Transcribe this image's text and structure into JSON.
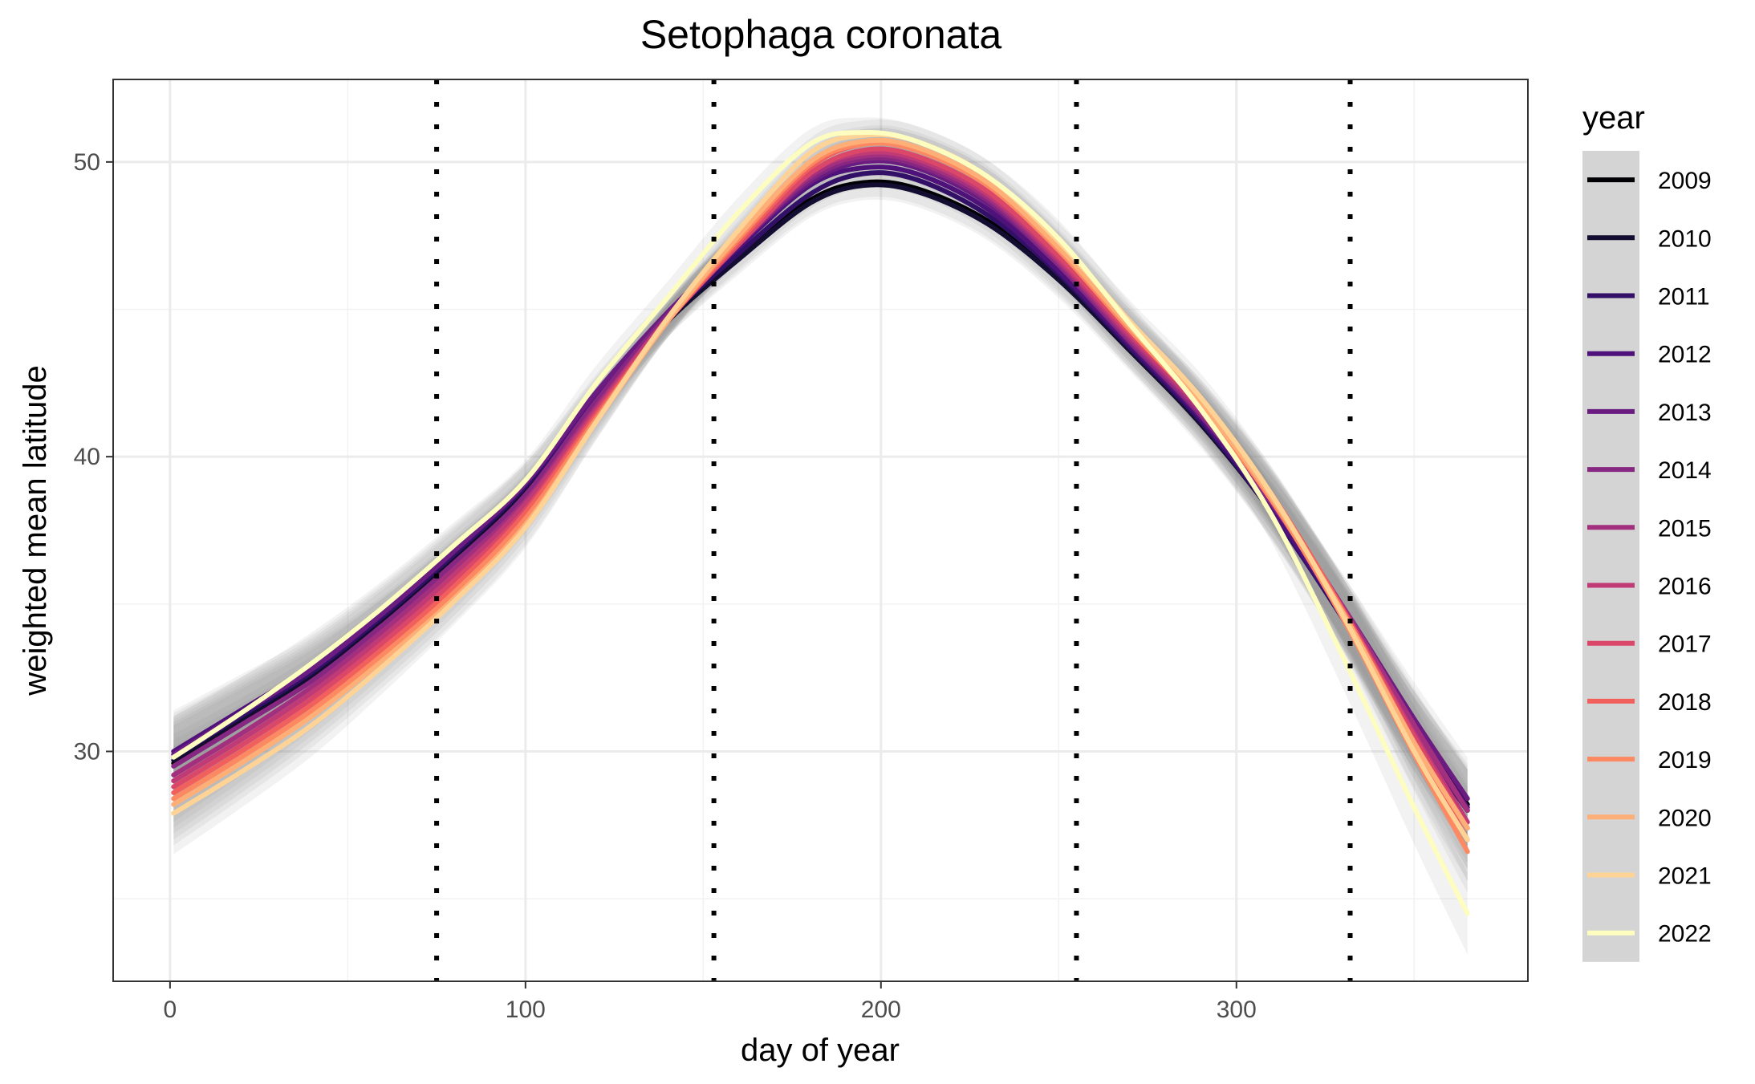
{
  "chart_data": {
    "type": "line",
    "title": "Setophaga coronata",
    "xlabel": "day of year",
    "ylabel": "weighted mean latitude",
    "xlim": [
      -16,
      382
    ],
    "ylim": [
      22.2,
      52.8
    ],
    "xticks": [
      0,
      100,
      200,
      300
    ],
    "yticks": [
      30,
      40,
      50
    ],
    "grid": true,
    "legend": {
      "title": "year",
      "position": "right"
    },
    "vlines": [
      75,
      153,
      255,
      332
    ],
    "x": [
      1,
      20,
      40,
      60,
      80,
      100,
      120,
      140,
      160,
      180,
      195,
      210,
      230,
      250,
      270,
      290,
      310,
      330,
      350,
      365
    ],
    "series": [
      {
        "name": "2009",
        "color": "#000004",
        "values": [
          29.6,
          31.0,
          32.5,
          34.3,
          36.4,
          38.7,
          41.8,
          44.6,
          46.8,
          48.7,
          49.3,
          49.1,
          48.0,
          46.1,
          43.7,
          41.2,
          38.2,
          34.6,
          30.8,
          28.2
        ]
      },
      {
        "name": "2010",
        "color": "#120D31",
        "values": [
          29.7,
          31.1,
          32.6,
          34.4,
          36.5,
          38.8,
          41.9,
          44.6,
          46.7,
          48.6,
          49.2,
          49.0,
          47.9,
          46.0,
          43.6,
          41.1,
          38.1,
          34.5,
          30.6,
          28.0
        ]
      },
      {
        "name": "2011",
        "color": "#331067",
        "values": [
          29.8,
          31.2,
          32.7,
          34.6,
          36.7,
          39.0,
          42.0,
          44.7,
          46.9,
          48.9,
          49.6,
          49.4,
          48.2,
          46.2,
          43.7,
          41.2,
          38.1,
          34.5,
          30.6,
          28.0
        ]
      },
      {
        "name": "2012",
        "color": "#4F127B",
        "values": [
          30.0,
          31.4,
          32.9,
          34.8,
          36.9,
          39.1,
          42.1,
          44.8,
          47.1,
          49.2,
          49.8,
          49.6,
          48.4,
          46.3,
          43.8,
          41.3,
          38.2,
          34.6,
          30.8,
          28.1
        ]
      },
      {
        "name": "2013",
        "color": "#6A1C81",
        "values": [
          29.9,
          31.3,
          32.8,
          34.7,
          36.8,
          39.1,
          42.2,
          44.9,
          47.2,
          49.3,
          50.0,
          49.8,
          48.6,
          46.5,
          43.9,
          41.4,
          38.4,
          34.9,
          31.1,
          28.4
        ]
      },
      {
        "name": "2014",
        "color": "#862781",
        "values": [
          29.5,
          30.9,
          32.4,
          34.3,
          36.4,
          38.7,
          41.9,
          44.8,
          47.2,
          49.4,
          50.1,
          49.9,
          48.7,
          46.5,
          43.9,
          41.4,
          38.4,
          34.8,
          30.8,
          28.0
        ]
      },
      {
        "name": "2015",
        "color": "#A3307E",
        "values": [
          29.2,
          30.6,
          32.2,
          34.1,
          36.2,
          38.5,
          41.7,
          44.7,
          47.2,
          49.5,
          50.2,
          50.0,
          48.8,
          46.6,
          44.0,
          41.5,
          38.5,
          34.9,
          30.9,
          28.0
        ]
      },
      {
        "name": "2016",
        "color": "#C03A76",
        "values": [
          29.0,
          30.4,
          32.0,
          33.9,
          36.0,
          38.4,
          41.6,
          44.7,
          47.2,
          49.6,
          50.3,
          50.1,
          48.9,
          46.7,
          44.1,
          41.6,
          38.6,
          34.8,
          30.6,
          27.6
        ]
      },
      {
        "name": "2017",
        "color": "#DA4769",
        "values": [
          28.8,
          30.2,
          31.8,
          33.7,
          35.8,
          38.2,
          41.5,
          44.6,
          47.2,
          49.6,
          50.4,
          50.2,
          49.0,
          46.8,
          44.2,
          41.7,
          38.6,
          34.8,
          30.5,
          27.4
        ]
      },
      {
        "name": "2018",
        "color": "#F1605D",
        "values": [
          28.6,
          30.0,
          31.6,
          33.5,
          35.6,
          38.1,
          41.4,
          44.6,
          47.3,
          49.8,
          50.6,
          50.4,
          49.2,
          47.0,
          44.3,
          41.8,
          38.7,
          34.8,
          30.3,
          27.0
        ]
      },
      {
        "name": "2019",
        "color": "#FC8961",
        "values": [
          28.4,
          29.8,
          31.4,
          33.3,
          35.4,
          37.9,
          41.3,
          44.6,
          47.4,
          49.9,
          50.6,
          50.4,
          49.2,
          47.0,
          44.3,
          41.7,
          38.5,
          34.5,
          29.9,
          26.6
        ]
      },
      {
        "name": "2020",
        "color": "#FEAF77",
        "values": [
          28.2,
          29.6,
          31.2,
          33.1,
          35.2,
          37.7,
          41.2,
          44.6,
          47.5,
          50.0,
          50.7,
          50.5,
          49.3,
          47.1,
          44.4,
          41.8,
          38.6,
          34.7,
          30.3,
          27.4
        ]
      },
      {
        "name": "2021",
        "color": "#FED395",
        "values": [
          27.9,
          29.3,
          30.9,
          32.9,
          35.1,
          37.6,
          41.2,
          44.7,
          47.7,
          50.3,
          50.9,
          50.7,
          49.5,
          47.3,
          44.6,
          42.0,
          38.7,
          34.6,
          30.0,
          27.0
        ]
      },
      {
        "name": "2022",
        "color": "#FCFDBF",
        "values": [
          29.8,
          31.3,
          33.0,
          34.9,
          37.0,
          39.2,
          42.5,
          45.4,
          48.3,
          50.6,
          51.0,
          50.7,
          49.5,
          47.4,
          44.5,
          41.6,
          38.0,
          33.2,
          28.1,
          24.5
        ]
      }
    ]
  }
}
